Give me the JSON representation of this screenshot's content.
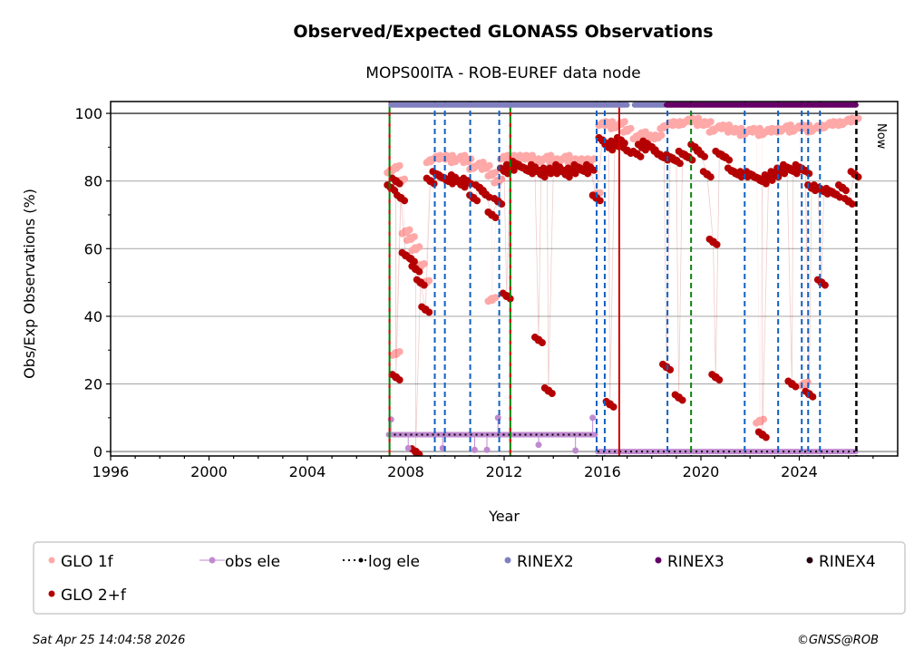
{
  "chart_data": {
    "type": "scatter",
    "title": "Observed/Expected GLONASS Observations",
    "subtitle": "MOPS00ITA - ROB-EUREF data node",
    "xlabel": "Year",
    "ylabel": "Obs/Exp Observations (%)",
    "xlim": [
      1996,
      2028
    ],
    "ylim": [
      -1.3,
      103.5
    ],
    "xticks": [
      "1996",
      "2000",
      "2004",
      "2008",
      "2012",
      "2016",
      "2020",
      "2024"
    ],
    "yticks": [
      "0",
      "20",
      "40",
      "60",
      "80",
      "100"
    ],
    "grid": "horizontal",
    "legend_placement": "bottom",
    "now_label": "Now",
    "now_year": 2026.32,
    "series": [
      {
        "name": "GLO 1f",
        "color": "#ffa8a8",
        "points": [
          [
            2007.4,
            83
          ],
          [
            2007.6,
            84
          ],
          [
            2007.8,
            80
          ],
          [
            2008.0,
            65
          ],
          [
            2008.2,
            63
          ],
          [
            2008.4,
            60
          ],
          [
            2008.6,
            55
          ],
          [
            2008.8,
            50
          ],
          [
            2009.0,
            86
          ],
          [
            2009.25,
            87
          ],
          [
            2009.5,
            87
          ],
          [
            2009.75,
            87
          ],
          [
            2010.0,
            86
          ],
          [
            2010.25,
            87
          ],
          [
            2010.5,
            86
          ],
          [
            2010.75,
            84
          ],
          [
            2011.0,
            85
          ],
          [
            2011.25,
            84
          ],
          [
            2011.5,
            82
          ],
          [
            2011.75,
            80
          ],
          [
            2012.0,
            87
          ],
          [
            2012.25,
            87
          ],
          [
            2012.5,
            87
          ],
          [
            2012.75,
            87
          ],
          [
            2013.0,
            87
          ],
          [
            2013.25,
            86
          ],
          [
            2013.5,
            86
          ],
          [
            2013.75,
            87
          ],
          [
            2014.0,
            86
          ],
          [
            2014.25,
            86
          ],
          [
            2014.5,
            87
          ],
          [
            2014.75,
            86
          ],
          [
            2015.0,
            86
          ],
          [
            2015.25,
            86
          ],
          [
            2015.5,
            86
          ],
          [
            2015.75,
            76
          ],
          [
            2016.0,
            97
          ],
          [
            2016.25,
            97
          ],
          [
            2016.5,
            96
          ],
          [
            2016.75,
            97
          ],
          [
            2017.0,
            95
          ],
          [
            2017.4,
            93
          ],
          [
            2017.6,
            94
          ],
          [
            2017.8,
            93
          ],
          [
            2018.0,
            93
          ],
          [
            2018.25,
            93
          ],
          [
            2018.5,
            96
          ],
          [
            2018.75,
            97
          ],
          [
            2019.0,
            97
          ],
          [
            2019.25,
            97
          ],
          [
            2019.5,
            98
          ],
          [
            2019.75,
            98
          ],
          [
            2020.0,
            97
          ],
          [
            2020.25,
            97
          ],
          [
            2020.5,
            95
          ],
          [
            2020.75,
            96
          ],
          [
            2021.0,
            96
          ],
          [
            2021.25,
            95
          ],
          [
            2021.5,
            95
          ],
          [
            2021.75,
            94
          ],
          [
            2022.0,
            95
          ],
          [
            2022.25,
            95
          ],
          [
            2022.5,
            94
          ],
          [
            2022.75,
            95
          ],
          [
            2023.0,
            95
          ],
          [
            2023.25,
            95
          ],
          [
            2023.5,
            96
          ],
          [
            2023.75,
            95
          ],
          [
            2024.0,
            96
          ],
          [
            2024.25,
            96
          ],
          [
            2024.5,
            95
          ],
          [
            2024.75,
            96
          ],
          [
            2025.0,
            96
          ],
          [
            2025.25,
            97
          ],
          [
            2025.5,
            97
          ],
          [
            2025.75,
            97
          ],
          [
            2026.0,
            98
          ],
          [
            2026.25,
            98
          ],
          [
            2007.6,
            29
          ],
          [
            2011.5,
            45
          ],
          [
            2022.4,
            9
          ],
          [
            2024.2,
            20
          ]
        ]
      },
      {
        "name": "GLO 2+f",
        "color": "#b40000",
        "points": [
          [
            2007.4,
            78
          ],
          [
            2007.6,
            80
          ],
          [
            2007.8,
            75
          ],
          [
            2008.0,
            58
          ],
          [
            2008.2,
            57
          ],
          [
            2008.4,
            54
          ],
          [
            2008.6,
            50
          ],
          [
            2008.8,
            42
          ],
          [
            2009.0,
            80
          ],
          [
            2009.25,
            82
          ],
          [
            2009.5,
            81
          ],
          [
            2009.75,
            80
          ],
          [
            2010.0,
            81
          ],
          [
            2010.25,
            79
          ],
          [
            2010.5,
            80
          ],
          [
            2010.75,
            75
          ],
          [
            2011.0,
            78
          ],
          [
            2011.25,
            76
          ],
          [
            2011.5,
            70
          ],
          [
            2011.75,
            74
          ],
          [
            2012.0,
            83
          ],
          [
            2012.25,
            84
          ],
          [
            2012.5,
            85
          ],
          [
            2012.75,
            84
          ],
          [
            2013.0,
            83
          ],
          [
            2013.25,
            84
          ],
          [
            2013.5,
            82
          ],
          [
            2013.75,
            83
          ],
          [
            2014.0,
            83
          ],
          [
            2014.25,
            84
          ],
          [
            2014.5,
            82
          ],
          [
            2014.75,
            83
          ],
          [
            2015.0,
            84
          ],
          [
            2015.25,
            83
          ],
          [
            2015.5,
            84
          ],
          [
            2015.75,
            75
          ],
          [
            2016.0,
            92
          ],
          [
            2016.25,
            90
          ],
          [
            2016.5,
            91
          ],
          [
            2016.75,
            92
          ],
          [
            2017.0,
            89
          ],
          [
            2017.4,
            88
          ],
          [
            2017.6,
            90
          ],
          [
            2017.8,
            91
          ],
          [
            2018.0,
            90
          ],
          [
            2018.25,
            88
          ],
          [
            2018.5,
            87
          ],
          [
            2018.75,
            87
          ],
          [
            2019.0,
            86
          ],
          [
            2019.25,
            88
          ],
          [
            2019.5,
            87
          ],
          [
            2019.75,
            90
          ],
          [
            2020.0,
            88
          ],
          [
            2020.25,
            82
          ],
          [
            2020.5,
            62
          ],
          [
            2020.75,
            88
          ],
          [
            2021.0,
            87
          ],
          [
            2021.25,
            83
          ],
          [
            2021.5,
            82
          ],
          [
            2021.75,
            82
          ],
          [
            2022.0,
            82
          ],
          [
            2022.25,
            81
          ],
          [
            2022.5,
            80
          ],
          [
            2022.75,
            81
          ],
          [
            2023.0,
            82
          ],
          [
            2023.25,
            83
          ],
          [
            2023.5,
            84
          ],
          [
            2023.75,
            83
          ],
          [
            2024.0,
            84
          ],
          [
            2024.25,
            83
          ],
          [
            2024.5,
            78
          ],
          [
            2024.75,
            78
          ],
          [
            2025.0,
            77
          ],
          [
            2025.25,
            77
          ],
          [
            2025.5,
            76
          ],
          [
            2025.75,
            78
          ],
          [
            2026.0,
            74
          ],
          [
            2026.25,
            82
          ],
          [
            2008.4,
            0
          ],
          [
            2007.6,
            22
          ],
          [
            2013.8,
            18
          ],
          [
            2016.3,
            14
          ],
          [
            2018.6,
            25
          ],
          [
            2019.1,
            16
          ],
          [
            2022.5,
            5
          ],
          [
            2023.7,
            20
          ],
          [
            2024.4,
            17
          ],
          [
            2024.9,
            50
          ],
          [
            2020.6,
            22
          ],
          [
            2012.1,
            46
          ],
          [
            2013.4,
            33
          ]
        ]
      },
      {
        "name": "obs ele",
        "color": "#c08ad0",
        "segments": [
          [
            [
              2007.3,
              5
            ],
            [
              2015.7,
              5
            ]
          ],
          [
            [
              2015.8,
              0
            ],
            [
              2026.3,
              0
            ]
          ]
        ],
        "points": [
          [
            2007.4,
            9.5
          ],
          [
            2011.75,
            10
          ],
          [
            2015.6,
            10
          ],
          [
            2008.1,
            1
          ],
          [
            2009.5,
            1
          ],
          [
            2010.8,
            0.5
          ],
          [
            2011.3,
            0.5
          ],
          [
            2013.4,
            2
          ],
          [
            2014.9,
            0.3
          ]
        ]
      },
      {
        "name": "log ele",
        "color": "#000000",
        "segments": [
          [
            [
              2007.3,
              5
            ],
            [
              2015.7,
              5
            ]
          ],
          [
            [
              2015.8,
              0
            ],
            [
              2026.3,
              0
            ]
          ]
        ]
      },
      {
        "name": "RINEX2",
        "color": "#8080c0",
        "spans": [
          [
            2007.4,
            2017.0
          ],
          [
            2017.3,
            2018.5
          ]
        ],
        "level": 102.5
      },
      {
        "name": "RINEX3",
        "color": "#660066",
        "spans": [
          [
            2018.6,
            2026.3
          ]
        ],
        "level": 102.5
      },
      {
        "name": "RINEX4",
        "color": "#220011",
        "spans": []
      }
    ],
    "event_lines": [
      {
        "year": 2007.34,
        "kind": "red-green"
      },
      {
        "year": 2012.25,
        "kind": "red-green"
      },
      {
        "year": 2009.18,
        "kind": "blue"
      },
      {
        "year": 2009.59,
        "kind": "blue"
      },
      {
        "year": 2010.62,
        "kind": "blue"
      },
      {
        "year": 2011.8,
        "kind": "blue"
      },
      {
        "year": 2015.76,
        "kind": "blue"
      },
      {
        "year": 2016.09,
        "kind": "blue"
      },
      {
        "year": 2018.64,
        "kind": "blue"
      },
      {
        "year": 2019.6,
        "kind": "green"
      },
      {
        "year": 2021.78,
        "kind": "blue"
      },
      {
        "year": 2023.14,
        "kind": "blue"
      },
      {
        "year": 2024.1,
        "kind": "blue"
      },
      {
        "year": 2024.36,
        "kind": "blue"
      },
      {
        "year": 2024.84,
        "kind": "blue"
      },
      {
        "year": 2016.68,
        "kind": "red-solid"
      },
      {
        "year": 2026.32,
        "kind": "now"
      }
    ]
  },
  "footer": {
    "timestamp": "Sat Apr 25 14:04:58 2026",
    "copyright": "©GNSS@ROB"
  }
}
